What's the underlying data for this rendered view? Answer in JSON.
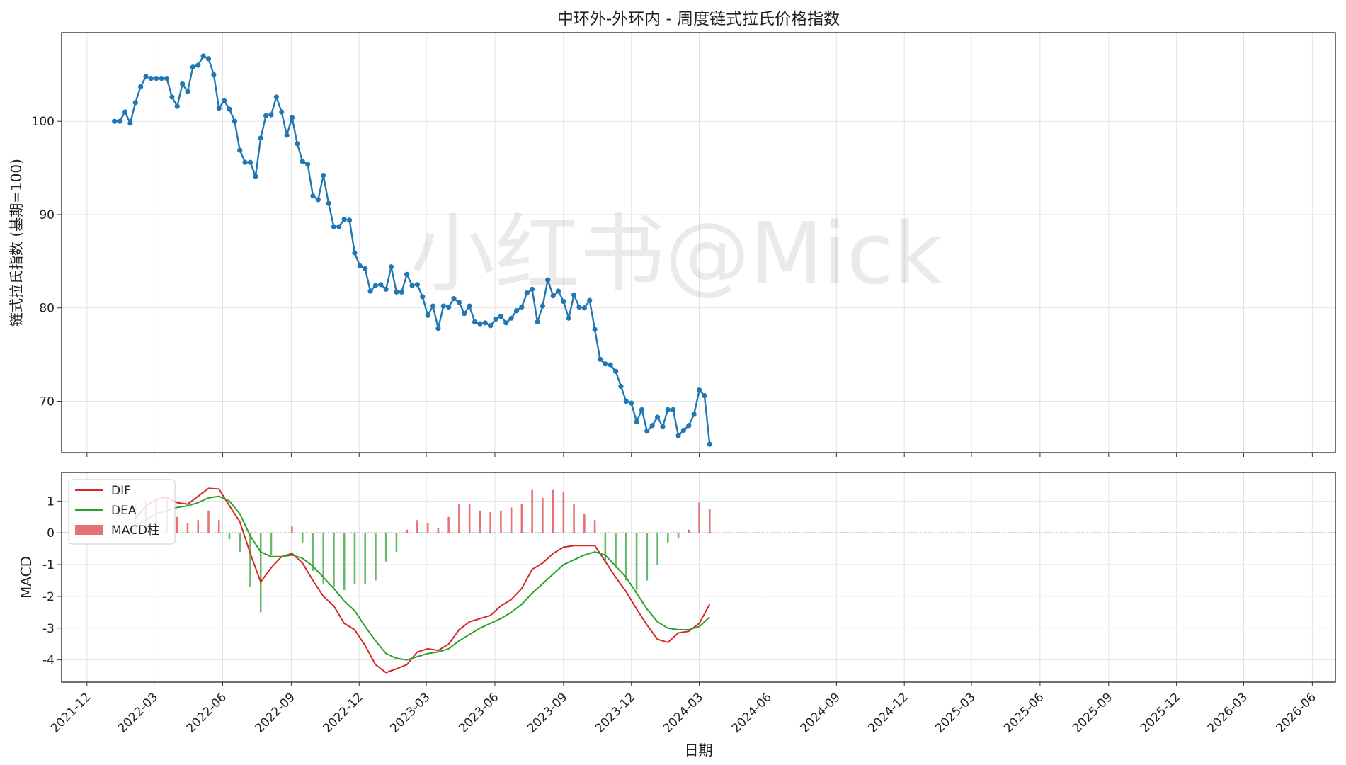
{
  "chart_data": [
    {
      "type": "line",
      "title": "中环外-外环内 - 周度链式拉氏价格指数",
      "ylabel": "链式拉氏指数 (基期=100)",
      "yticks": [
        70,
        80,
        90,
        100
      ],
      "ylim": [
        64.5,
        109.5
      ],
      "xlim": [
        "2021-10-28",
        "2026-07-02"
      ],
      "grid": true,
      "watermark": "小红书@Mick",
      "series": [
        {
          "color": "#1f77b4",
          "points": [
            {
              "x": "2022-01-07",
              "y": 100.0
            },
            {
              "x": "2022-01-14",
              "y": 100.0
            },
            {
              "x": "2022-01-21",
              "y": 101.0
            },
            {
              "x": "2022-01-28",
              "y": 99.8
            },
            {
              "x": "2022-02-04",
              "y": 102.0
            },
            {
              "x": "2022-02-11",
              "y": 103.7
            },
            {
              "x": "2022-02-18",
              "y": 104.8
            },
            {
              "x": "2022-02-25",
              "y": 104.6
            },
            {
              "x": "2022-03-04",
              "y": 104.6
            },
            {
              "x": "2022-03-11",
              "y": 104.6
            },
            {
              "x": "2022-03-18",
              "y": 104.6
            },
            {
              "x": "2022-03-25",
              "y": 102.6
            },
            {
              "x": "2022-04-01",
              "y": 101.6
            },
            {
              "x": "2022-04-08",
              "y": 104.0
            },
            {
              "x": "2022-04-15",
              "y": 103.2
            },
            {
              "x": "2022-04-22",
              "y": 105.8
            },
            {
              "x": "2022-04-29",
              "y": 106.0
            },
            {
              "x": "2022-05-06",
              "y": 107.0
            },
            {
              "x": "2022-05-13",
              "y": 106.7
            },
            {
              "x": "2022-05-20",
              "y": 105.0
            },
            {
              "x": "2022-05-27",
              "y": 101.4
            },
            {
              "x": "2022-06-03",
              "y": 102.2
            },
            {
              "x": "2022-06-10",
              "y": 101.3
            },
            {
              "x": "2022-06-17",
              "y": 100.0
            },
            {
              "x": "2022-06-24",
              "y": 96.9
            },
            {
              "x": "2022-07-01",
              "y": 95.6
            },
            {
              "x": "2022-07-08",
              "y": 95.6
            },
            {
              "x": "2022-07-15",
              "y": 94.1
            },
            {
              "x": "2022-07-22",
              "y": 98.2
            },
            {
              "x": "2022-07-29",
              "y": 100.6
            },
            {
              "x": "2022-08-05",
              "y": 100.7
            },
            {
              "x": "2022-08-12",
              "y": 102.6
            },
            {
              "x": "2022-08-19",
              "y": 101.0
            },
            {
              "x": "2022-08-26",
              "y": 98.5
            },
            {
              "x": "2022-09-02",
              "y": 100.4
            },
            {
              "x": "2022-09-09",
              "y": 97.6
            },
            {
              "x": "2022-09-16",
              "y": 95.7
            },
            {
              "x": "2022-09-23",
              "y": 95.4
            },
            {
              "x": "2022-09-30",
              "y": 92.0
            },
            {
              "x": "2022-10-07",
              "y": 91.6
            },
            {
              "x": "2022-10-14",
              "y": 94.2
            },
            {
              "x": "2022-10-21",
              "y": 91.2
            },
            {
              "x": "2022-10-28",
              "y": 88.7
            },
            {
              "x": "2022-11-04",
              "y": 88.7
            },
            {
              "x": "2022-11-11",
              "y": 89.5
            },
            {
              "x": "2022-11-18",
              "y": 89.4
            },
            {
              "x": "2022-11-25",
              "y": 85.9
            },
            {
              "x": "2022-12-02",
              "y": 84.5
            },
            {
              "x": "2022-12-09",
              "y": 84.2
            },
            {
              "x": "2022-12-16",
              "y": 81.8
            },
            {
              "x": "2022-12-23",
              "y": 82.4
            },
            {
              "x": "2022-12-30",
              "y": 82.5
            },
            {
              "x": "2023-01-06",
              "y": 82.0
            },
            {
              "x": "2023-01-13",
              "y": 84.4
            },
            {
              "x": "2023-01-20",
              "y": 81.7
            },
            {
              "x": "2023-01-27",
              "y": 81.7
            },
            {
              "x": "2023-02-03",
              "y": 83.6
            },
            {
              "x": "2023-02-10",
              "y": 82.4
            },
            {
              "x": "2023-02-17",
              "y": 82.5
            },
            {
              "x": "2023-02-24",
              "y": 81.2
            },
            {
              "x": "2023-03-03",
              "y": 79.2
            },
            {
              "x": "2023-03-10",
              "y": 80.2
            },
            {
              "x": "2023-03-17",
              "y": 77.8
            },
            {
              "x": "2023-03-24",
              "y": 80.2
            },
            {
              "x": "2023-03-31",
              "y": 80.1
            },
            {
              "x": "2023-04-07",
              "y": 81.0
            },
            {
              "x": "2023-04-14",
              "y": 80.6
            },
            {
              "x": "2023-04-21",
              "y": 79.4
            },
            {
              "x": "2023-04-28",
              "y": 80.2
            },
            {
              "x": "2023-05-05",
              "y": 78.5
            },
            {
              "x": "2023-05-12",
              "y": 78.3
            },
            {
              "x": "2023-05-19",
              "y": 78.4
            },
            {
              "x": "2023-05-26",
              "y": 78.1
            },
            {
              "x": "2023-06-02",
              "y": 78.8
            },
            {
              "x": "2023-06-09",
              "y": 79.1
            },
            {
              "x": "2023-06-16",
              "y": 78.4
            },
            {
              "x": "2023-06-23",
              "y": 78.9
            },
            {
              "x": "2023-06-30",
              "y": 79.7
            },
            {
              "x": "2023-07-07",
              "y": 80.1
            },
            {
              "x": "2023-07-14",
              "y": 81.6
            },
            {
              "x": "2023-07-21",
              "y": 82.0
            },
            {
              "x": "2023-07-28",
              "y": 78.5
            },
            {
              "x": "2023-08-04",
              "y": 80.2
            },
            {
              "x": "2023-08-11",
              "y": 83.0
            },
            {
              "x": "2023-08-18",
              "y": 81.3
            },
            {
              "x": "2023-08-25",
              "y": 81.8
            },
            {
              "x": "2023-09-01",
              "y": 80.7
            },
            {
              "x": "2023-09-08",
              "y": 78.9
            },
            {
              "x": "2023-09-15",
              "y": 81.4
            },
            {
              "x": "2023-09-22",
              "y": 80.1
            },
            {
              "x": "2023-09-29",
              "y": 80.0
            },
            {
              "x": "2023-10-06",
              "y": 80.8
            },
            {
              "x": "2023-10-13",
              "y": 77.7
            },
            {
              "x": "2023-10-20",
              "y": 74.5
            },
            {
              "x": "2023-10-27",
              "y": 74.0
            },
            {
              "x": "2023-11-03",
              "y": 73.9
            },
            {
              "x": "2023-11-10",
              "y": 73.2
            },
            {
              "x": "2023-11-17",
              "y": 71.6
            },
            {
              "x": "2023-11-24",
              "y": 70.0
            },
            {
              "x": "2023-12-01",
              "y": 69.8
            },
            {
              "x": "2023-12-08",
              "y": 67.8
            },
            {
              "x": "2023-12-15",
              "y": 69.1
            },
            {
              "x": "2023-12-22",
              "y": 66.8
            },
            {
              "x": "2023-12-29",
              "y": 67.4
            },
            {
              "x": "2024-01-05",
              "y": 68.3
            },
            {
              "x": "2024-01-12",
              "y": 67.3
            },
            {
              "x": "2024-01-19",
              "y": 69.1
            },
            {
              "x": "2024-01-26",
              "y": 69.1
            },
            {
              "x": "2024-02-02",
              "y": 66.3
            },
            {
              "x": "2024-02-09",
              "y": 66.9
            },
            {
              "x": "2024-02-16",
              "y": 67.4
            },
            {
              "x": "2024-02-23",
              "y": 68.6
            },
            {
              "x": "2024-03-01",
              "y": 71.2
            },
            {
              "x": "2024-03-08",
              "y": 70.6
            },
            {
              "x": "2024-03-15",
              "y": 65.4
            }
          ]
        }
      ]
    },
    {
      "type": "line",
      "ylabel": "MACD",
      "xlabel": "日期",
      "yticks": [
        -4,
        -3,
        -2,
        -1,
        0,
        1
      ],
      "xticks": [
        "2021-12",
        "2022-03",
        "2022-06",
        "2022-09",
        "2022-12",
        "2023-03",
        "2023-06",
        "2023-09",
        "2023-12",
        "2024-03",
        "2024-06",
        "2024-09",
        "2024-12",
        "2025-03",
        "2025-06",
        "2025-09",
        "2025-12",
        "2026-03",
        "2026-06"
      ],
      "ylim": [
        -4.7,
        1.9
      ],
      "xlim": [
        "2021-10-28",
        "2026-07-02"
      ],
      "grid": true,
      "zero_line": true,
      "legend_position": "top-left",
      "legend": [
        "DIF",
        "DEA",
        "MACD柱"
      ],
      "colors": {
        "DIF": "#d62728",
        "DEA": "#2ca02c",
        "MACD柱_pos": "#e57373",
        "MACD柱_neg": "#66bb6a"
      },
      "x": [
        "2022-02-04",
        "2022-02-18",
        "2022-03-04",
        "2022-03-18",
        "2022-04-01",
        "2022-04-15",
        "2022-04-29",
        "2022-05-13",
        "2022-05-27",
        "2022-06-10",
        "2022-06-24",
        "2022-07-08",
        "2022-07-22",
        "2022-08-05",
        "2022-08-19",
        "2022-09-02",
        "2022-09-16",
        "2022-09-30",
        "2022-10-14",
        "2022-10-28",
        "2022-11-11",
        "2022-11-25",
        "2022-12-09",
        "2022-12-23",
        "2023-01-06",
        "2023-01-20",
        "2023-02-03",
        "2023-02-17",
        "2023-03-03",
        "2023-03-17",
        "2023-03-31",
        "2023-04-14",
        "2023-04-28",
        "2023-05-12",
        "2023-05-26",
        "2023-06-09",
        "2023-06-23",
        "2023-07-07",
        "2023-07-21",
        "2023-08-04",
        "2023-08-18",
        "2023-09-01",
        "2023-09-15",
        "2023-09-29",
        "2023-10-13",
        "2023-10-27",
        "2023-11-10",
        "2023-11-24",
        "2023-12-08",
        "2023-12-22",
        "2024-01-05",
        "2024-01-19",
        "2024-02-02",
        "2024-02-16",
        "2024-03-01",
        "2024-03-15"
      ],
      "series": [
        {
          "name": "DIF",
          "values": [
            0.45,
            0.85,
            1.05,
            1.12,
            0.95,
            0.9,
            1.15,
            1.4,
            1.38,
            0.85,
            0.35,
            -0.65,
            -1.55,
            -1.1,
            -0.75,
            -0.65,
            -0.95,
            -1.5,
            -2.0,
            -2.3,
            -2.85,
            -3.05,
            -3.55,
            -4.15,
            -4.4,
            -4.28,
            -4.15,
            -3.75,
            -3.65,
            -3.7,
            -3.5,
            -3.05,
            -2.8,
            -2.7,
            -2.6,
            -2.3,
            -2.1,
            -1.75,
            -1.15,
            -0.95,
            -0.65,
            -0.45,
            -0.4,
            -0.4,
            -0.4,
            -0.9,
            -1.4,
            -1.85,
            -2.4,
            -2.9,
            -3.35,
            -3.45,
            -3.15,
            -3.1,
            -2.85,
            -2.25
          ]
        },
        {
          "name": "DEA",
          "values": [
            0.2,
            0.4,
            0.6,
            0.7,
            0.8,
            0.85,
            0.95,
            1.1,
            1.15,
            1.0,
            0.6,
            -0.1,
            -0.6,
            -0.75,
            -0.75,
            -0.7,
            -0.8,
            -1.05,
            -1.4,
            -1.75,
            -2.15,
            -2.45,
            -2.95,
            -3.4,
            -3.8,
            -3.95,
            -4.0,
            -3.9,
            -3.8,
            -3.75,
            -3.65,
            -3.4,
            -3.2,
            -3.0,
            -2.85,
            -2.7,
            -2.5,
            -2.25,
            -1.9,
            -1.6,
            -1.3,
            -1.0,
            -0.85,
            -0.7,
            -0.6,
            -0.7,
            -1.05,
            -1.4,
            -1.9,
            -2.4,
            -2.8,
            -3.0,
            -3.05,
            -3.05,
            -2.95,
            -2.65
          ]
        },
        {
          "name": "MACD柱",
          "values": [
            0.9,
            1.0,
            1.05,
            1.05,
            0.5,
            0.3,
            0.4,
            0.7,
            0.4,
            -0.2,
            -0.6,
            -1.7,
            -2.5,
            -0.7,
            0.0,
            0.2,
            -0.3,
            -1.2,
            -1.6,
            -1.7,
            -1.8,
            -1.6,
            -1.6,
            -1.5,
            -0.9,
            -0.6,
            0.1,
            0.4,
            0.3,
            0.15,
            0.5,
            0.9,
            0.9,
            0.7,
            0.65,
            0.7,
            0.8,
            0.9,
            1.35,
            1.1,
            1.35,
            1.3,
            0.9,
            0.6,
            0.4,
            -0.9,
            -1.1,
            -1.5,
            -1.8,
            -1.5,
            -1.0,
            -0.3,
            -0.15,
            0.1,
            0.95,
            0.75
          ]
        }
      ]
    }
  ]
}
